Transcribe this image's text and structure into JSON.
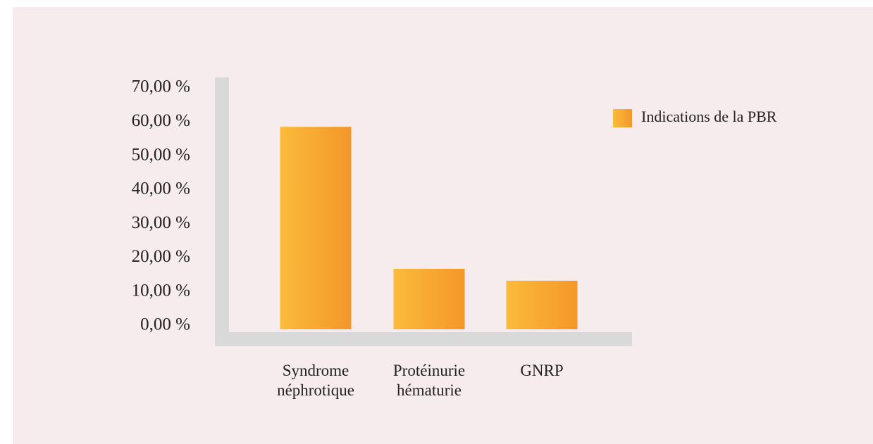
{
  "chart_data": {
    "type": "bar",
    "categories": [
      "Syndrome néphrotique",
      "Protéinurie hématurie",
      "GNRP"
    ],
    "series": [
      {
        "name": "Indications de la PBR",
        "color": "#f6a830",
        "values": [
          59.6,
          17.8,
          14.3
        ]
      }
    ],
    "ylim": [
      0,
      70
    ],
    "yticks": [
      {
        "value": 0,
        "label": "0,00 %"
      },
      {
        "value": 10,
        "label": "10,00 %"
      },
      {
        "value": 20,
        "label": "20,00 %"
      },
      {
        "value": 30,
        "label": "30,00 %"
      },
      {
        "value": 40,
        "label": "40,00 %"
      },
      {
        "value": 50,
        "label": "50,00 %"
      },
      {
        "value": 60,
        "label": "60,00 %"
      },
      {
        "value": 70,
        "label": "70,00 %"
      }
    ],
    "legend": "right"
  }
}
